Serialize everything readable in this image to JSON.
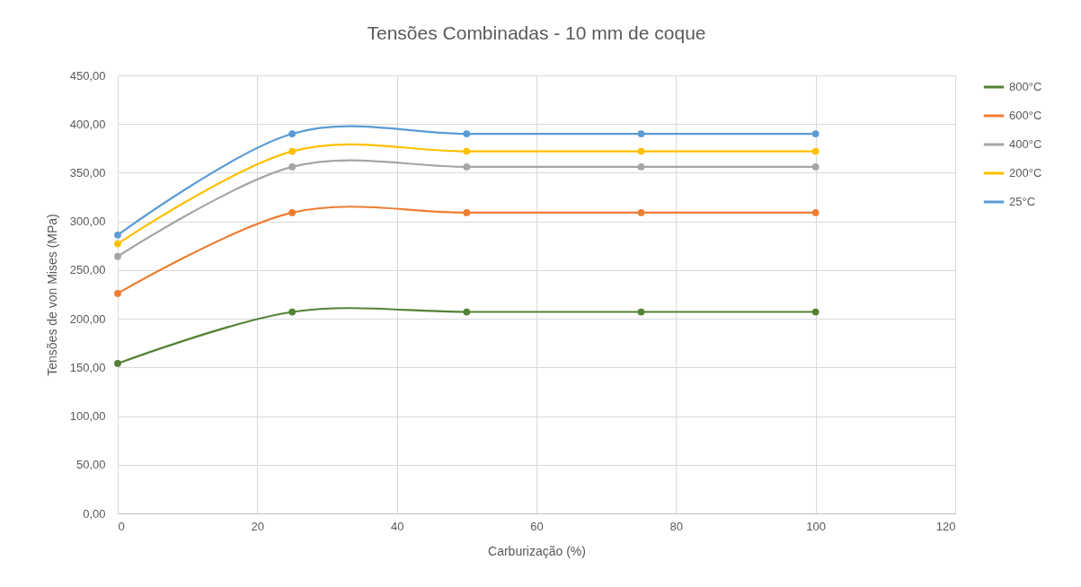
{
  "chart_data": {
    "type": "line",
    "title": "Tensões Combinadas - 10 mm de coque",
    "xlabel": "Carburização (%)",
    "ylabel": "Tensões de von Mises (MPa)",
    "x": [
      0,
      25,
      50,
      75,
      100
    ],
    "series": [
      {
        "name": "800°C",
        "color": "#548235",
        "values": [
          154,
          207,
          207,
          207,
          207
        ]
      },
      {
        "name": "600°C",
        "color": "#ed7d31",
        "values": [
          226,
          309,
          309,
          309,
          309
        ]
      },
      {
        "name": "400°C",
        "color": "#a5a5a5",
        "values": [
          264,
          356,
          356,
          356,
          356
        ]
      },
      {
        "name": "200°C",
        "color": "#ffc000",
        "values": [
          277,
          372,
          372,
          372,
          372
        ]
      },
      {
        "name": "25°C",
        "color": "#5b9bd5",
        "values": [
          286,
          390,
          390,
          390,
          390
        ]
      }
    ],
    "xlim": [
      0,
      120
    ],
    "xticks": [
      0,
      20,
      40,
      60,
      80,
      100,
      120
    ],
    "ylim": [
      0,
      450
    ],
    "yticks": [
      {
        "value": 0,
        "label": "0,00"
      },
      {
        "value": 50,
        "label": "50,00"
      },
      {
        "value": 100,
        "label": "100,00"
      },
      {
        "value": 150,
        "label": "150,00"
      },
      {
        "value": 200,
        "label": "200,00"
      },
      {
        "value": 250,
        "label": "250,00"
      },
      {
        "value": 300,
        "label": "300,00"
      },
      {
        "value": 350,
        "label": "350,00"
      },
      {
        "value": 400,
        "label": "400,00"
      },
      {
        "value": 450,
        "label": "450,00"
      }
    ],
    "grid": true,
    "legend": "right",
    "marker": "circle",
    "line_style": "solid"
  }
}
